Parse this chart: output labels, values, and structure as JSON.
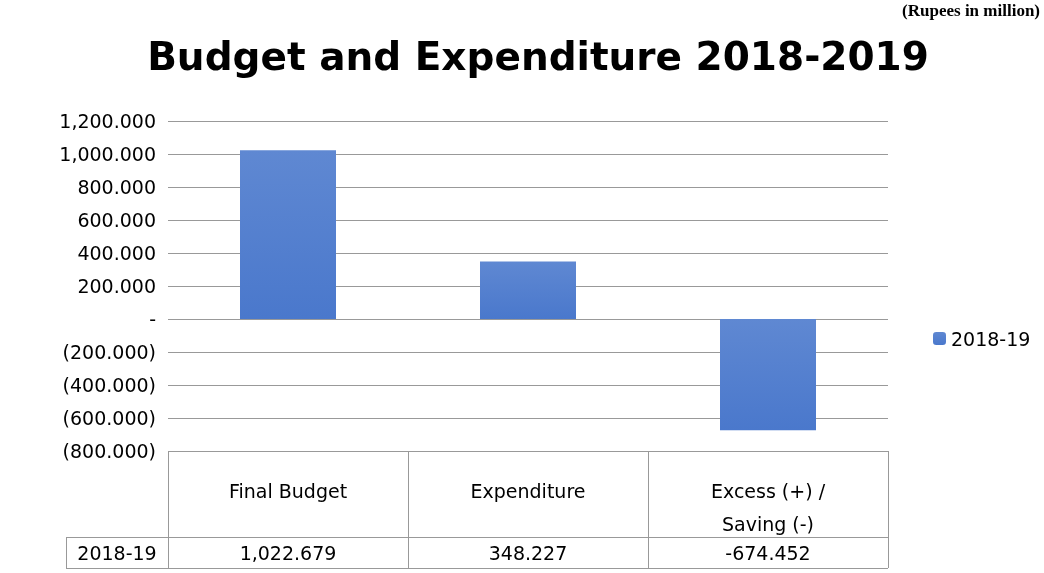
{
  "chart_data": {
    "type": "bar",
    "title": "Budget and Expenditure 2018-2019",
    "annotations": [
      "(Rupees in million)"
    ],
    "categories": [
      "Final Budget",
      "Expenditure",
      "Excess (+) / Saving (-)"
    ],
    "series": [
      {
        "name": "2018-19",
        "color": "#4a78cc",
        "values": [
          1022.679,
          348.227,
          -674.452
        ],
        "value_labels": [
          "1,022.679",
          "348.227",
          "-674.452"
        ]
      }
    ],
    "ylim": [
      -800,
      1200
    ],
    "yticks": [
      {
        "value": -800,
        "label": "(800.000)"
      },
      {
        "value": -600,
        "label": "(600.000)"
      },
      {
        "value": -400,
        "label": "(400.000)"
      },
      {
        "value": -200,
        "label": "(200.000)"
      },
      {
        "value": 0,
        "label": "-"
      },
      {
        "value": 200,
        "label": "200.000"
      },
      {
        "value": 400,
        "label": "400.000"
      },
      {
        "value": 600,
        "label": "600.000"
      },
      {
        "value": 800,
        "label": "800.000"
      },
      {
        "value": 1000,
        "label": "1,000.000"
      },
      {
        "value": 1200,
        "label": "1,200.000"
      }
    ],
    "grid": "y",
    "legend": "right"
  }
}
